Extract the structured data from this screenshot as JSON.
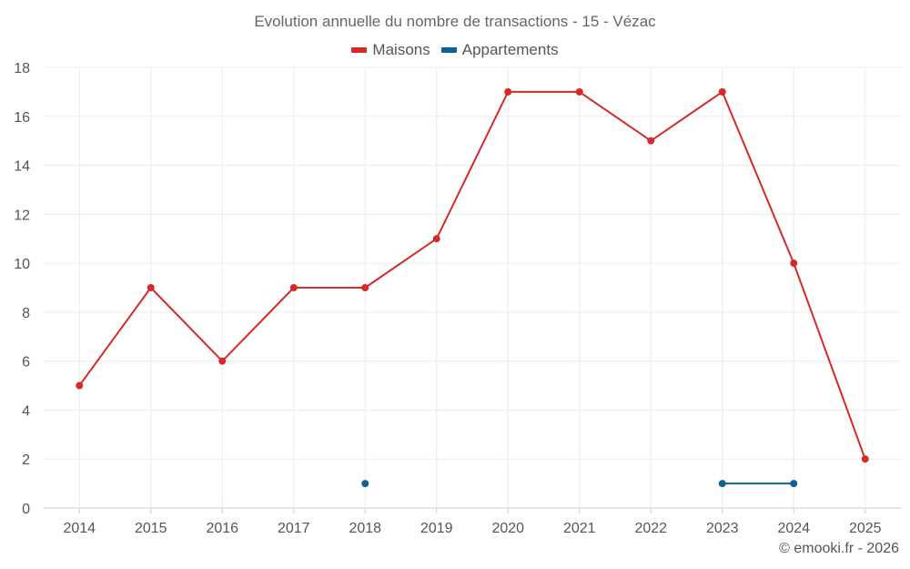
{
  "chart_data": {
    "type": "line",
    "title": "Evolution annuelle du nombre de transactions - 15 - Vézac",
    "categories": [
      "2014",
      "2015",
      "2016",
      "2017",
      "2018",
      "2019",
      "2020",
      "2021",
      "2022",
      "2023",
      "2024",
      "2025"
    ],
    "ylim": [
      0,
      18
    ],
    "yticks": [
      0,
      2,
      4,
      6,
      8,
      10,
      12,
      14,
      16,
      18
    ],
    "grid": true,
    "legend_position": "top-center",
    "series": [
      {
        "name": "Maisons",
        "color": "#d32a2a",
        "values": [
          5,
          9,
          6,
          9,
          9,
          11,
          17,
          17,
          15,
          17,
          10,
          2
        ]
      },
      {
        "name": "Appartements",
        "color": "#0e6196",
        "values": [
          null,
          null,
          null,
          null,
          1,
          null,
          null,
          null,
          null,
          1,
          1,
          null
        ]
      }
    ]
  },
  "credit": "© emooki.fr - 2026"
}
